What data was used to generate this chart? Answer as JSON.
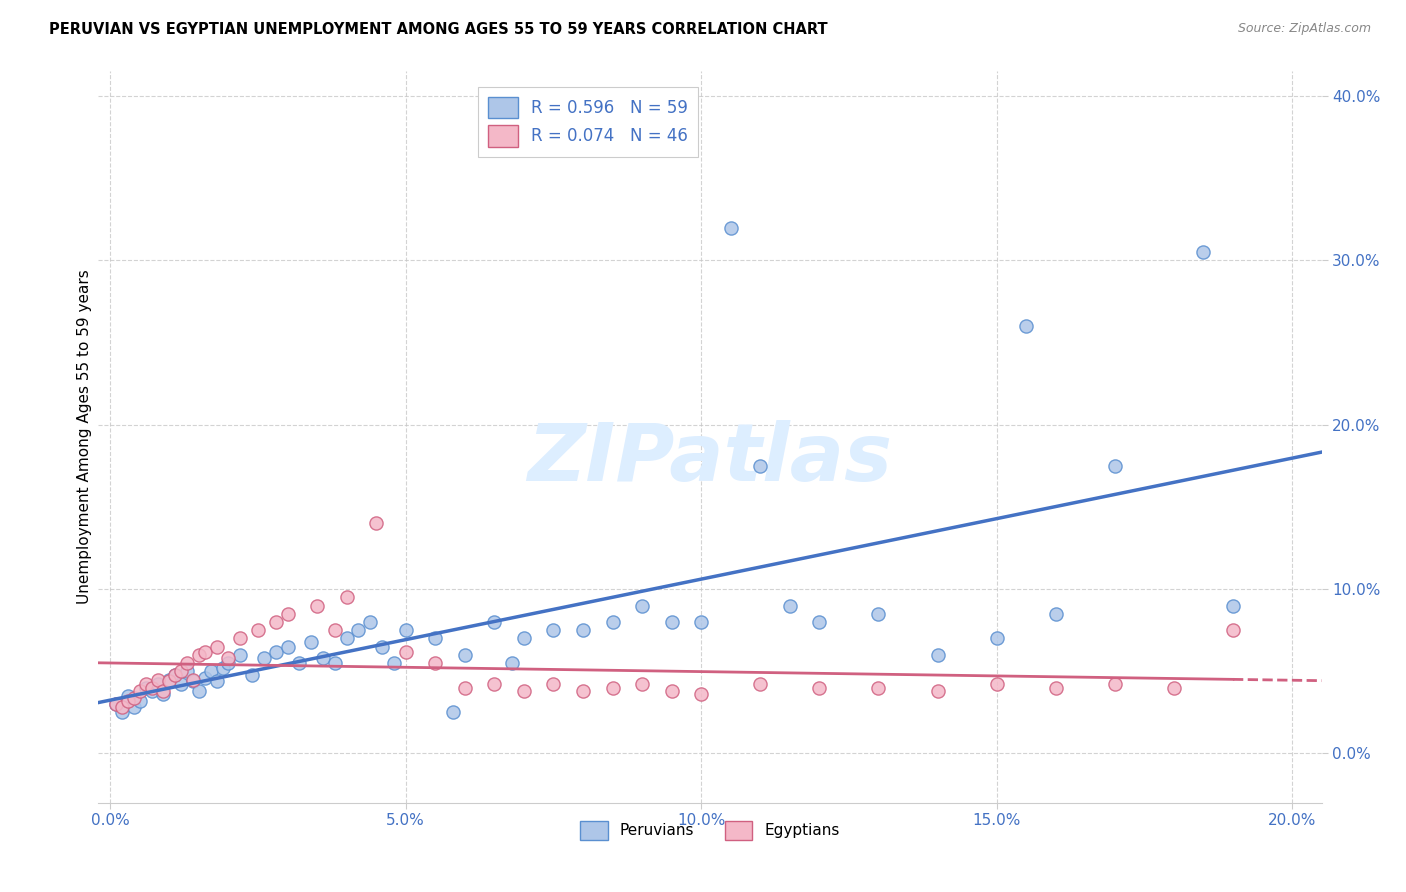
{
  "title": "PERUVIAN VS EGYPTIAN UNEMPLOYMENT AMONG AGES 55 TO 59 YEARS CORRELATION CHART",
  "source": "Source: ZipAtlas.com",
  "ylabel": "Unemployment Among Ages 55 to 59 years",
  "xlim": [
    -0.002,
    0.205
  ],
  "ylim": [
    -0.03,
    0.415
  ],
  "xticks": [
    0.0,
    0.05,
    0.1,
    0.15,
    0.2
  ],
  "yticks": [
    0.0,
    0.1,
    0.2,
    0.3,
    0.4
  ],
  "xtick_labels": [
    "0.0%",
    "5.0%",
    "10.0%",
    "15.0%",
    "20.0%"
  ],
  "ytick_labels": [
    "0.0%",
    "10.0%",
    "20.0%",
    "30.0%",
    "40.0%"
  ],
  "peruvian_color": "#aec6e8",
  "egyptian_color": "#f4b8c8",
  "peruvian_edge_color": "#5a8fd0",
  "egyptian_edge_color": "#d06080",
  "peruvian_line_color": "#4472c4",
  "egyptian_line_color": "#d06080",
  "peruvian_R": 0.596,
  "peruvian_N": 59,
  "egyptian_R": 0.074,
  "egyptian_N": 46,
  "watermark": "ZIPatlas",
  "watermark_color": "#ddeeff",
  "legend_peruvian_label": "Peruvians",
  "legend_egyptian_label": "Egyptians",
  "peruvian_scatter_x": [
    0.001,
    0.002,
    0.003,
    0.004,
    0.005,
    0.006,
    0.007,
    0.008,
    0.009,
    0.01,
    0.011,
    0.012,
    0.013,
    0.014,
    0.015,
    0.016,
    0.017,
    0.018,
    0.019,
    0.02,
    0.022,
    0.024,
    0.026,
    0.028,
    0.03,
    0.032,
    0.034,
    0.036,
    0.038,
    0.04,
    0.042,
    0.044,
    0.046,
    0.048,
    0.05,
    0.055,
    0.058,
    0.06,
    0.065,
    0.068,
    0.07,
    0.075,
    0.08,
    0.085,
    0.09,
    0.095,
    0.1,
    0.105,
    0.11,
    0.115,
    0.12,
    0.13,
    0.14,
    0.15,
    0.155,
    0.16,
    0.17,
    0.185,
    0.19
  ],
  "peruvian_scatter_y": [
    0.03,
    0.025,
    0.035,
    0.028,
    0.032,
    0.04,
    0.038,
    0.042,
    0.036,
    0.045,
    0.048,
    0.042,
    0.05,
    0.044,
    0.038,
    0.046,
    0.05,
    0.044,
    0.052,
    0.055,
    0.06,
    0.048,
    0.058,
    0.062,
    0.065,
    0.055,
    0.068,
    0.058,
    0.055,
    0.07,
    0.075,
    0.08,
    0.065,
    0.055,
    0.075,
    0.07,
    0.025,
    0.06,
    0.08,
    0.055,
    0.07,
    0.075,
    0.075,
    0.08,
    0.09,
    0.08,
    0.08,
    0.32,
    0.175,
    0.09,
    0.08,
    0.085,
    0.06,
    0.07,
    0.26,
    0.085,
    0.175,
    0.305,
    0.09
  ],
  "egyptian_scatter_x": [
    0.001,
    0.002,
    0.003,
    0.004,
    0.005,
    0.006,
    0.007,
    0.008,
    0.009,
    0.01,
    0.011,
    0.012,
    0.013,
    0.014,
    0.015,
    0.016,
    0.018,
    0.02,
    0.022,
    0.025,
    0.028,
    0.03,
    0.035,
    0.038,
    0.04,
    0.045,
    0.05,
    0.055,
    0.06,
    0.065,
    0.07,
    0.075,
    0.08,
    0.085,
    0.09,
    0.095,
    0.1,
    0.11,
    0.12,
    0.13,
    0.14,
    0.15,
    0.16,
    0.17,
    0.18,
    0.19
  ],
  "egyptian_scatter_y": [
    0.03,
    0.028,
    0.032,
    0.034,
    0.038,
    0.042,
    0.04,
    0.045,
    0.038,
    0.044,
    0.048,
    0.05,
    0.055,
    0.045,
    0.06,
    0.062,
    0.065,
    0.058,
    0.07,
    0.075,
    0.08,
    0.085,
    0.09,
    0.075,
    0.095,
    0.14,
    0.062,
    0.055,
    0.04,
    0.042,
    0.038,
    0.042,
    0.038,
    0.04,
    0.042,
    0.038,
    0.036,
    0.042,
    0.04,
    0.04,
    0.038,
    0.042,
    0.04,
    0.042,
    0.04,
    0.075
  ],
  "background_color": "#ffffff",
  "grid_color": "#c8c8c8"
}
